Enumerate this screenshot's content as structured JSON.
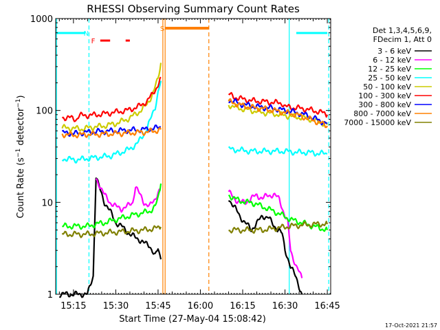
{
  "chart_data": {
    "type": "line",
    "title": "RHESSI Observing Summary Count Rates",
    "xlabel": "Start Time (27-May-04 15:08:42)",
    "ylabel": "Count Rate (s⁻¹ detector⁻¹)",
    "ylabel_main": "Count Rate (s",
    "ylabel_sup1": "−1",
    "ylabel_mid": " detector",
    "ylabel_sup2": "−1",
    "ylabel_end": ")",
    "yscale": "log",
    "ylim": [
      1,
      1000
    ],
    "xlim_minutes": [
      68.7,
      166.2
    ],
    "x_ticks": [
      {
        "label": "15:15",
        "t": 75
      },
      {
        "label": "15:30",
        "t": 90
      },
      {
        "label": "15:45",
        "t": 105
      },
      {
        "label": "16:00",
        "t": 120
      },
      {
        "label": "16:15",
        "t": 135
      },
      {
        "label": "16:30",
        "t": 150
      },
      {
        "label": "16:45",
        "t": 165
      }
    ],
    "y_ticks": [
      {
        "label": "1",
        "v": 1
      },
      {
        "label": "10",
        "v": 10
      },
      {
        "label": "100",
        "v": 100
      },
      {
        "label": "1000",
        "v": 1000
      }
    ],
    "legend_header": [
      "Det 1,3,4,5,6,9,",
      "FDecim 1, Att 0"
    ],
    "series": [
      {
        "name": "3 - 6 keV",
        "color": "#000000",
        "segments": [
          [
            [
              70,
              1.0
            ],
            [
              80,
              1.0
            ],
            [
              82,
              1.6
            ],
            [
              83,
              19
            ],
            [
              84,
              15
            ],
            [
              86,
              10
            ],
            [
              88,
              8
            ],
            [
              90,
              6
            ],
            [
              92,
              5.5
            ],
            [
              95,
              4.5
            ],
            [
              98,
              4
            ],
            [
              100,
              3.6
            ],
            [
              102,
              3.4
            ],
            [
              104,
              2.6
            ],
            [
              105,
              3.1
            ],
            [
              106,
              2.4
            ]
          ],
          [
            [
              130,
              11
            ],
            [
              132,
              9
            ],
            [
              134,
              7
            ],
            [
              136,
              6
            ],
            [
              138,
              5
            ],
            [
              140,
              6
            ],
            [
              142,
              7
            ],
            [
              144,
              7
            ],
            [
              146,
              5.5
            ],
            [
              148,
              5
            ],
            [
              149,
              4.5
            ],
            [
              150,
              3
            ],
            [
              151,
              2.5
            ],
            [
              152,
              2
            ],
            [
              154,
              1.5
            ],
            [
              156,
              1
            ]
          ]
        ]
      },
      {
        "name": "6 - 12 keV",
        "color": "#ff00ff",
        "segments": [
          [
            [
              83,
              18
            ],
            [
              84,
              16
            ],
            [
              86,
              12
            ],
            [
              88,
              10
            ],
            [
              90,
              9
            ],
            [
              92,
              8.5
            ],
            [
              94,
              9
            ],
            [
              96,
              10
            ],
            [
              97,
              15
            ],
            [
              98,
              13
            ],
            [
              100,
              10
            ],
            [
              102,
              9
            ],
            [
              104,
              11
            ],
            [
              105,
              13
            ],
            [
              106,
              14
            ]
          ],
          [
            [
              130,
              13
            ],
            [
              132,
              11
            ],
            [
              134,
              10
            ],
            [
              136,
              10
            ],
            [
              138,
              11
            ],
            [
              140,
              12
            ],
            [
              142,
              11
            ],
            [
              144,
              12
            ],
            [
              146,
              12
            ],
            [
              148,
              11
            ],
            [
              150,
              7
            ],
            [
              151,
              6
            ],
            [
              152,
              3
            ],
            [
              154,
              2
            ],
            [
              156,
              1.5
            ]
          ]
        ]
      },
      {
        "name": "12 - 25 keV",
        "color": "#00ff00",
        "segments": [
          [
            [
              71,
              5.5
            ],
            [
              80,
              5.5
            ],
            [
              83,
              5.8
            ],
            [
              86,
              6
            ],
            [
              90,
              6.5
            ],
            [
              94,
              7
            ],
            [
              98,
              7.5
            ],
            [
              102,
              8
            ],
            [
              104,
              9
            ],
            [
              105,
              11
            ],
            [
              106,
              16
            ]
          ],
          [
            [
              130,
              12
            ],
            [
              132,
              11
            ],
            [
              134,
              10.5
            ],
            [
              136,
              10
            ],
            [
              138,
              10
            ],
            [
              140,
              9.5
            ],
            [
              142,
              9
            ],
            [
              144,
              8.5
            ],
            [
              146,
              8
            ],
            [
              148,
              7.5
            ],
            [
              150,
              7
            ],
            [
              152,
              6.5
            ],
            [
              156,
              6
            ],
            [
              160,
              5.5
            ],
            [
              165,
              5
            ]
          ]
        ]
      },
      {
        "name": "25 - 50 keV",
        "color": "#00ffff",
        "segments": [
          [
            [
              71,
              30
            ],
            [
              76,
              29
            ],
            [
              80,
              30
            ],
            [
              84,
              31
            ],
            [
              88,
              32
            ],
            [
              92,
              35
            ],
            [
              95,
              38
            ],
            [
              98,
              45
            ],
            [
              100,
              55
            ],
            [
              102,
              75
            ],
            [
              104,
              110
            ],
            [
              105,
              160
            ],
            [
              106,
              210
            ]
          ],
          [
            [
              130,
              38
            ],
            [
              134,
              37
            ],
            [
              138,
              36
            ],
            [
              142,
              36
            ],
            [
              146,
              36
            ],
            [
              150,
              36
            ],
            [
              154,
              35
            ],
            [
              158,
              35
            ],
            [
              162,
              34
            ],
            [
              165,
              34
            ]
          ]
        ]
      },
      {
        "name": "50 - 100 keV",
        "color": "#cccc00",
        "segments": [
          [
            [
              71,
              65
            ],
            [
              78,
              63
            ],
            [
              82,
              66
            ],
            [
              86,
              68
            ],
            [
              90,
              72
            ],
            [
              94,
              80
            ],
            [
              98,
              95
            ],
            [
              101,
              115
            ],
            [
              103,
              150
            ],
            [
              105,
              220
            ],
            [
              106,
              330
            ]
          ],
          [
            [
              130,
              115
            ],
            [
              134,
              105
            ],
            [
              138,
              100
            ],
            [
              142,
              95
            ],
            [
              146,
              92
            ],
            [
              150,
              88
            ],
            [
              154,
              85
            ],
            [
              158,
              82
            ],
            [
              162,
              75
            ],
            [
              165,
              70
            ]
          ]
        ]
      },
      {
        "name": "100 - 300 keV",
        "color": "#ff0000",
        "segments": [
          [
            [
              71,
              84
            ],
            [
              74,
              83
            ],
            [
              76,
              80
            ],
            [
              77,
              88
            ],
            [
              82,
              89
            ],
            [
              86,
              92
            ],
            [
              90,
              96
            ],
            [
              94,
              100
            ],
            [
              98,
              110
            ],
            [
              101,
              125
            ],
            [
              103,
              150
            ],
            [
              105,
              190
            ],
            [
              106,
              230
            ]
          ],
          [
            [
              130,
              150
            ],
            [
              132,
              140
            ],
            [
              134,
              135
            ],
            [
              138,
              128
            ],
            [
              142,
              125
            ],
            [
              146,
              122
            ],
            [
              149,
              120
            ],
            [
              150,
              110
            ],
            [
              152,
              108
            ],
            [
              156,
              105
            ],
            [
              160,
              100
            ],
            [
              163,
              95
            ],
            [
              165,
              90
            ]
          ]
        ]
      },
      {
        "name": "300 - 800 keV",
        "color": "#0000ff",
        "segments": [
          [
            [
              71,
              57
            ],
            [
              76,
              56
            ],
            [
              80,
              58
            ],
            [
              84,
              59
            ],
            [
              90,
              60
            ],
            [
              95,
              61
            ],
            [
              100,
              62
            ],
            [
              104,
              64
            ],
            [
              106,
              66
            ]
          ],
          [
            [
              130,
              130
            ],
            [
              132,
              125
            ],
            [
              134,
              118
            ],
            [
              138,
              112
            ],
            [
              142,
              108
            ],
            [
              146,
              105
            ],
            [
              150,
              100
            ],
            [
              154,
              95
            ],
            [
              158,
              88
            ],
            [
              162,
              78
            ],
            [
              165,
              72
            ]
          ]
        ]
      },
      {
        "name": "800 - 7000 keV",
        "color": "#ff8000",
        "segments": [
          [
            [
              71,
              55
            ],
            [
              76,
              54
            ],
            [
              80,
              55
            ],
            [
              84,
              55
            ],
            [
              90,
              56
            ],
            [
              95,
              57
            ],
            [
              100,
              58
            ],
            [
              104,
              60
            ],
            [
              106,
              62
            ]
          ],
          [
            [
              130,
              125
            ],
            [
              132,
              120
            ],
            [
              134,
              115
            ],
            [
              138,
              108
            ],
            [
              142,
              105
            ],
            [
              146,
              100
            ],
            [
              150,
              95
            ],
            [
              154,
              90
            ],
            [
              158,
              82
            ],
            [
              162,
              74
            ],
            [
              165,
              68
            ]
          ]
        ]
      },
      {
        "name": "7000 - 15000 keV",
        "color": "#808000",
        "segments": [
          [
            [
              71,
              4.5
            ],
            [
              80,
              4.5
            ],
            [
              84,
              4.6
            ],
            [
              88,
              4.7
            ],
            [
              92,
              4.8
            ],
            [
              96,
              4.9
            ],
            [
              100,
              5
            ],
            [
              104,
              5.2
            ],
            [
              106,
              5.4
            ]
          ],
          [
            [
              130,
              5
            ],
            [
              134,
              5
            ],
            [
              138,
              5
            ],
            [
              142,
              5
            ],
            [
              146,
              5.2
            ],
            [
              150,
              5.4
            ],
            [
              154,
              5.6
            ],
            [
              158,
              5.7
            ],
            [
              162,
              5.8
            ],
            [
              165,
              5.8
            ]
          ]
        ]
      }
    ],
    "annotations": {
      "flag_N": {
        "label": "N",
        "color": "#00ffff",
        "t": 79.5,
        "bars": [
          [
            69,
            79.2
          ],
          [
            154,
            165
          ]
        ]
      },
      "flag_F": {
        "label": "F",
        "color": "#ff0000",
        "t": 82,
        "bars": [
          [
            84.5,
            88
          ],
          [
            93.5,
            95
          ]
        ]
      },
      "flag_S": {
        "label": "S",
        "color": "#ff8000",
        "t": 106.5,
        "bars": [
          [
            107.5,
            123
          ]
        ]
      },
      "cyan_solid_lines": [
        69,
        151.5
      ],
      "cyan_dashed_lines": [
        80.5,
        165.5
      ],
      "orange_solid_lines": [
        106.7,
        107.5
      ],
      "orange_dashed_lines": [
        123
      ]
    }
  },
  "timestamp": "17-Oct-2021 21:57"
}
